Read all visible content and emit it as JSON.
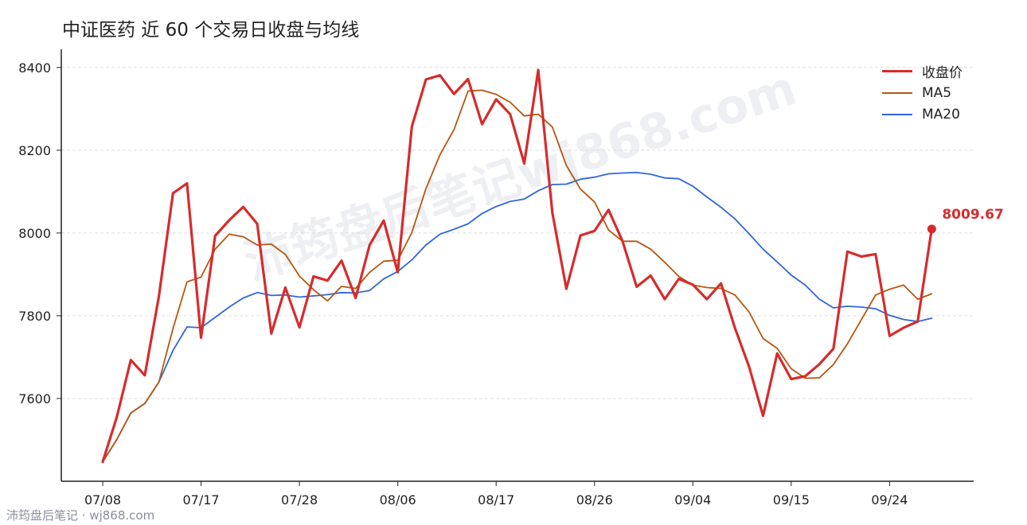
{
  "title": "中证医药 近 60 个交易日收盘与均线",
  "footer": "沛筠盘后笔记 · wj868.com",
  "watermark": "沛筠盘后笔记wj868.com",
  "legend": {
    "close": "收盘价",
    "ma5": "MA5",
    "ma20": "MA20"
  },
  "colors": {
    "close": "#d62c2c",
    "ma5": "#b8560f",
    "ma20": "#2f66de",
    "axis": "#222222",
    "grid": "#dddddd"
  },
  "chart_data": {
    "type": "line",
    "title": "中证医药 近 60 个交易日收盘与均线",
    "xlabel": "",
    "ylabel": "",
    "ylim": [
      7400,
      8440
    ],
    "yticks": [
      7600,
      7800,
      8000,
      8200,
      8400
    ],
    "xtick_labels": [
      "07/08",
      "07/17",
      "07/28",
      "08/06",
      "08/17",
      "08/26",
      "09/04",
      "09/15",
      "09/24"
    ],
    "grid": "horizontal dashed",
    "legend_position": "top-right",
    "last_label": "8009.67",
    "series": [
      {
        "name": "收盘价",
        "values": [
          7447,
          7555,
          7693,
          7656,
          7847,
          8096,
          8120,
          7747,
          7993,
          8031,
          8063,
          8022,
          7757,
          7868,
          7772,
          7895,
          7885,
          7933,
          7843,
          7971,
          8030,
          7905,
          8257,
          8371,
          8381,
          8336,
          8372,
          8263,
          8323,
          8287,
          8168,
          8394,
          8049,
          7865,
          7994,
          8005,
          8056,
          7980,
          7870,
          7897,
          7840,
          7889,
          7875,
          7840,
          7878,
          7770,
          7677,
          7558,
          7709,
          7647,
          7654,
          7683,
          7720,
          7955,
          7943,
          7949,
          7751,
          7771,
          7786,
          8009.67
        ]
      },
      {
        "name": "MA5",
        "values": [
          7447,
          7501,
          7565,
          7588,
          7640,
          7769,
          7882,
          7893,
          7961,
          7997,
          7991,
          7971,
          7973,
          7948,
          7896,
          7863,
          7836,
          7871,
          7866,
          7905,
          7932,
          7934,
          8001,
          8107,
          8189,
          8250,
          8343,
          8345,
          8335,
          8316,
          8283,
          8287,
          8256,
          8163,
          8106,
          8075,
          8007,
          7980,
          7980,
          7961,
          7929,
          7895,
          7874,
          7868,
          7866,
          7850,
          7809,
          7745,
          7721,
          7672,
          7649,
          7650,
          7682,
          7732,
          7791,
          7850,
          7864,
          7874,
          7840,
          7853
        ]
      },
      {
        "name": "MA20",
        "values": [
          7447,
          7501,
          7565,
          7588,
          7640,
          7716,
          7773,
          7771,
          7796,
          7821,
          7843,
          7856,
          7849,
          7850,
          7845,
          7848,
          7851,
          7856,
          7855,
          7861,
          7889,
          7907,
          7935,
          7971,
          7997,
          8009,
          8022,
          8047,
          8064,
          8076,
          8082,
          8102,
          8117,
          8118,
          8130,
          8135,
          8143,
          8145,
          8146,
          8142,
          8133,
          8131,
          8113,
          8087,
          8062,
          8034,
          7998,
          7961,
          7930,
          7898,
          7874,
          7840,
          7819,
          7823,
          7821,
          7817,
          7801,
          7791,
          7786,
          7794
        ]
      }
    ]
  }
}
